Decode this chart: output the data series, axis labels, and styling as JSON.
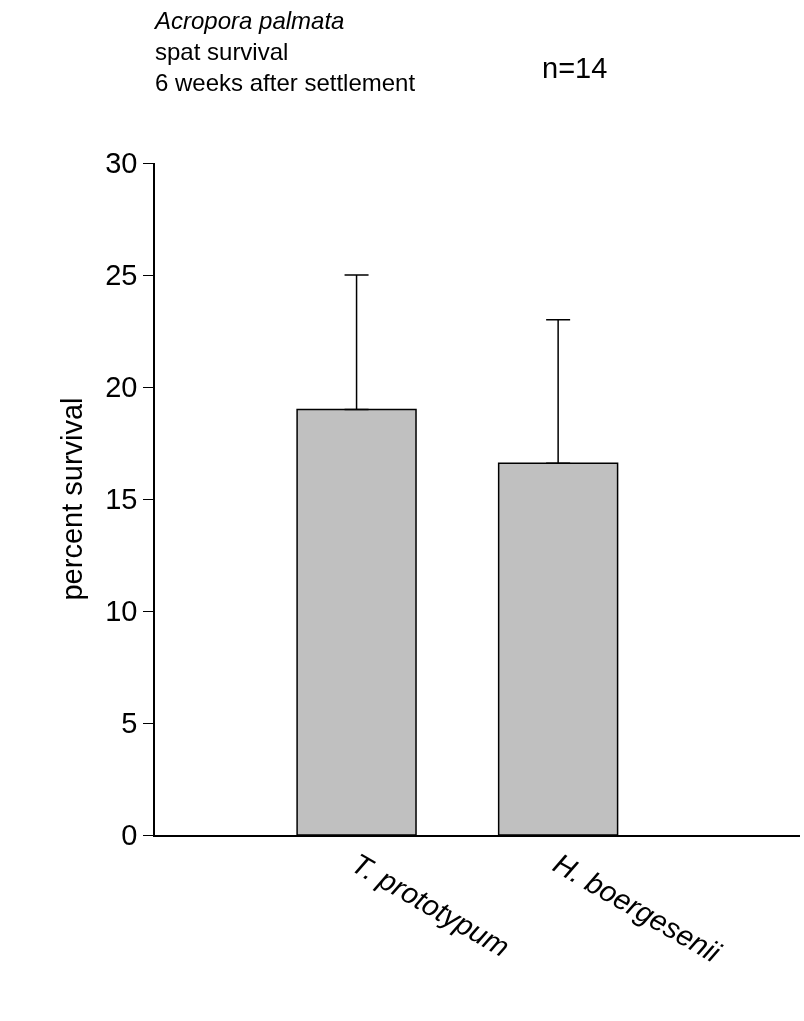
{
  "chart_data": {
    "type": "bar",
    "title": "Acropora palmata\nspat survival\n6 weeks after settlement",
    "ylabel": "percent survival",
    "annotations": [
      "n=14"
    ],
    "categories": [
      "T. prototypum",
      "H. boergesenii"
    ],
    "values": [
      19,
      16.6
    ],
    "errors": [
      [
        19,
        25
      ],
      [
        16.6,
        23
      ]
    ],
    "color": "#c0c0c0",
    "ylim": [
      0,
      30
    ],
    "yticks": [
      0,
      5,
      10,
      15,
      20,
      25,
      30
    ]
  }
}
